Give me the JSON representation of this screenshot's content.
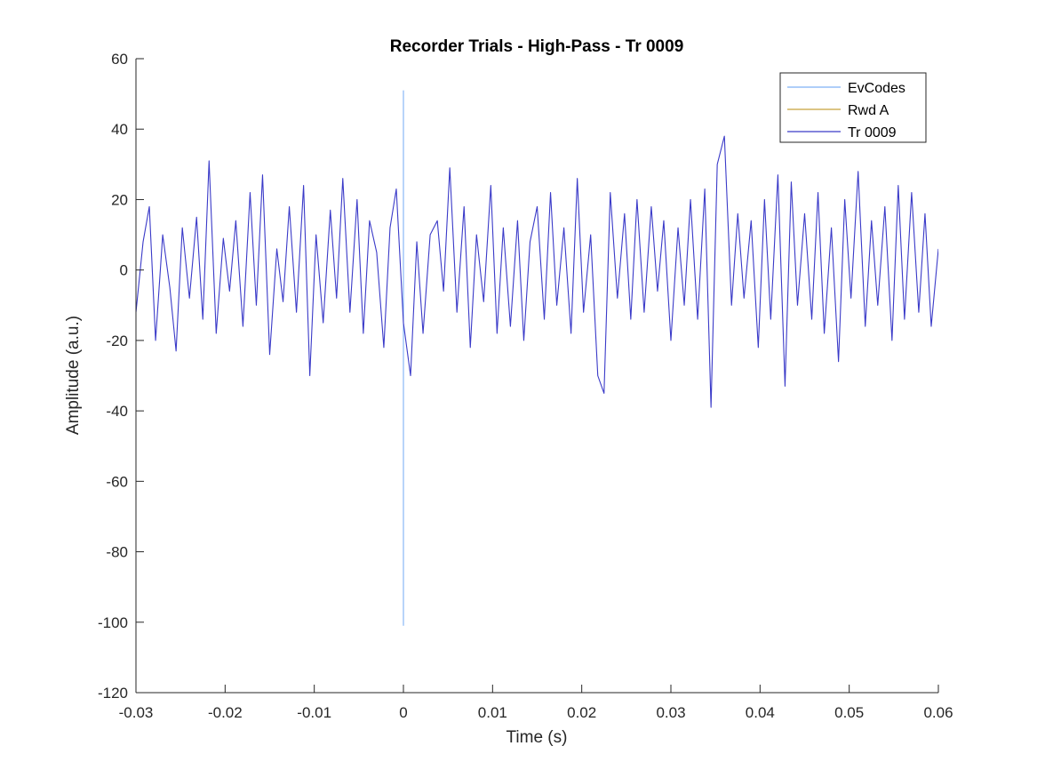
{
  "chart_data": {
    "type": "line",
    "title": "Recorder Trials - High-Pass - Tr 0009",
    "xlabel": "Time (s)",
    "ylabel": "Amplitude (a.u.)",
    "xlim": [
      -0.03,
      0.06
    ],
    "ylim": [
      -120,
      60
    ],
    "xticks": [
      -0.03,
      -0.02,
      -0.01,
      0,
      0.01,
      0.02,
      0.03,
      0.04,
      0.05,
      0.06
    ],
    "xtick_labels": [
      "-0.03",
      "-0.02",
      "-0.01",
      "0",
      "0.01",
      "0.02",
      "0.03",
      "0.04",
      "0.05",
      "0.06"
    ],
    "yticks": [
      60,
      40,
      20,
      0,
      -20,
      -40,
      -60,
      -80,
      -100,
      -120
    ],
    "ytick_labels": [
      "60",
      "40",
      "20",
      "0",
      "-20",
      "-40",
      "-60",
      "-80",
      "-100",
      "-120"
    ],
    "grid": false,
    "legend_position": "top-right",
    "series": [
      {
        "name": "EvCodes",
        "color": "#7fb1f5",
        "x": [
          0,
          0
        ],
        "y": [
          51,
          -101
        ]
      },
      {
        "name": "Rwd A",
        "color": "#c8a23a",
        "x": [],
        "y": []
      },
      {
        "name": "Tr 0009",
        "color": "#3a3ac8",
        "x": [
          -0.03,
          -0.0292,
          -0.0285,
          -0.0278,
          -0.027,
          -0.0262,
          -0.0255,
          -0.0248,
          -0.024,
          -0.0232,
          -0.0225,
          -0.0218,
          -0.021,
          -0.0202,
          -0.0195,
          -0.0188,
          -0.018,
          -0.0172,
          -0.0165,
          -0.0158,
          -0.015,
          -0.0142,
          -0.0135,
          -0.0128,
          -0.012,
          -0.0112,
          -0.0105,
          -0.0098,
          -0.009,
          -0.0082,
          -0.0075,
          -0.0068,
          -0.006,
          -0.0052,
          -0.0045,
          -0.0038,
          -0.003,
          -0.0022,
          -0.0015,
          -0.0008,
          0,
          0.0008,
          0.0015,
          0.0022,
          0.003,
          0.0038,
          0.0045,
          0.0052,
          0.006,
          0.0068,
          0.0075,
          0.0082,
          0.009,
          0.0098,
          0.0105,
          0.0112,
          0.012,
          0.0128,
          0.0135,
          0.0142,
          0.015,
          0.0158,
          0.0165,
          0.0172,
          0.018,
          0.0188,
          0.0195,
          0.0202,
          0.021,
          0.0218,
          0.0225,
          0.0232,
          0.024,
          0.0248,
          0.0255,
          0.0262,
          0.027,
          0.0278,
          0.0285,
          0.0292,
          0.03,
          0.0308,
          0.0315,
          0.0322,
          0.033,
          0.0338,
          0.0345,
          0.0352,
          0.036,
          0.0368,
          0.0375,
          0.0382,
          0.039,
          0.0398,
          0.0405,
          0.0412,
          0.042,
          0.0428,
          0.0435,
          0.0442,
          0.045,
          0.0458,
          0.0465,
          0.0472,
          0.048,
          0.0488,
          0.0495,
          0.0502,
          0.051,
          0.0518,
          0.0525,
          0.0532,
          0.054,
          0.0548,
          0.0555,
          0.0562,
          0.057,
          0.0578,
          0.0585,
          0.0592,
          0.06
        ],
        "y": [
          -12,
          8,
          18,
          -20,
          10,
          -5,
          -23,
          12,
          -8,
          15,
          -14,
          31,
          -18,
          9,
          -6,
          14,
          -16,
          22,
          -10,
          27,
          -24,
          6,
          -9,
          18,
          -12,
          24,
          -30,
          10,
          -15,
          17,
          -8,
          26,
          -12,
          20,
          -18,
          14,
          5,
          -22,
          12,
          23,
          -15,
          -30,
          8,
          -18,
          10,
          14,
          -6,
          29,
          -12,
          18,
          -22,
          10,
          -9,
          24,
          -18,
          12,
          -16,
          14,
          -20,
          8,
          18,
          -14,
          22,
          -10,
          12,
          -18,
          26,
          -12,
          10,
          -30,
          -35,
          22,
          -8,
          16,
          -14,
          20,
          -12,
          18,
          -6,
          14,
          -20,
          12,
          -10,
          20,
          -14,
          23,
          -39,
          30,
          38,
          -10,
          16,
          -8,
          14,
          -22,
          20,
          -14,
          27,
          -33,
          25,
          -10,
          16,
          -14,
          22,
          -18,
          12,
          -26,
          20,
          -8,
          28,
          -16,
          14,
          -10,
          18,
          -20,
          24,
          -14,
          22,
          -12,
          16,
          -16,
          6
        ]
      }
    ]
  }
}
